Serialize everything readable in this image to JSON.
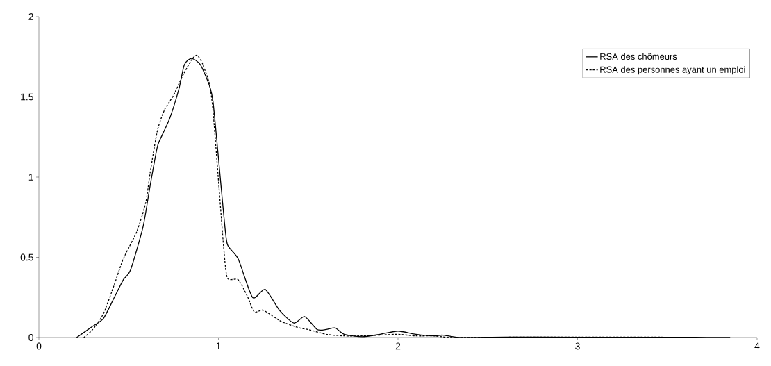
{
  "chart_data": {
    "type": "line",
    "xlim": [
      0,
      4
    ],
    "ylim": [
      0,
      2
    ],
    "xticks": [
      0,
      1,
      2,
      3,
      4
    ],
    "yticks": [
      0,
      0.5,
      1,
      1.5,
      2
    ],
    "legend": "top right",
    "marker": "none",
    "series": [
      {
        "name": "RSA des chômeurs",
        "color": "#000000",
        "line_style": "solid",
        "x": [
          0.21,
          0.3,
          0.36,
          0.42,
          0.47,
          0.51,
          0.58,
          0.62,
          0.66,
          0.69,
          0.73,
          0.78,
          0.81,
          0.85,
          0.9,
          0.95,
          0.97,
          1.0,
          1.03,
          1.05,
          1.11,
          1.19,
          1.26,
          1.34,
          1.42,
          1.48,
          1.55,
          1.6,
          1.65,
          1.7,
          1.8,
          1.9,
          2.0,
          2.1,
          2.2,
          2.25,
          2.35,
          2.6,
          3.0,
          3.5,
          3.85
        ],
        "values": [
          0,
          0.07,
          0.12,
          0.25,
          0.36,
          0.42,
          0.69,
          0.95,
          1.19,
          1.27,
          1.37,
          1.55,
          1.7,
          1.74,
          1.7,
          1.57,
          1.47,
          1.12,
          0.76,
          0.58,
          0.49,
          0.25,
          0.3,
          0.17,
          0.09,
          0.13,
          0.05,
          0.05,
          0.06,
          0.02,
          0.005,
          0.02,
          0.04,
          0.02,
          0.01,
          0.015,
          0,
          0.003,
          0.002,
          0.002,
          0
        ]
      },
      {
        "name": "RSA des personnes ayant un emploi",
        "color": "#000000",
        "line_style": "dashed",
        "x": [
          0.25,
          0.3,
          0.36,
          0.42,
          0.47,
          0.545,
          0.595,
          0.62,
          0.66,
          0.7,
          0.75,
          0.8,
          0.85,
          0.88,
          0.91,
          0.95,
          0.97,
          1.0,
          1.03,
          1.05,
          1.11,
          1.16,
          1.2,
          1.25,
          1.35,
          1.45,
          1.5,
          1.6,
          1.7,
          1.8,
          1.9,
          2.0,
          2.1,
          2.2,
          2.3,
          2.6,
          3.0,
          3.5
        ],
        "values": [
          0,
          0.05,
          0.15,
          0.33,
          0.49,
          0.66,
          0.84,
          1.03,
          1.29,
          1.42,
          1.51,
          1.63,
          1.73,
          1.76,
          1.71,
          1.58,
          1.41,
          0.98,
          0.55,
          0.37,
          0.36,
          0.26,
          0.16,
          0.17,
          0.1,
          0.06,
          0.05,
          0.02,
          0.01,
          0.01,
          0.015,
          0.02,
          0.01,
          0.01,
          0,
          0.002,
          0.003,
          0.002
        ]
      }
    ]
  }
}
